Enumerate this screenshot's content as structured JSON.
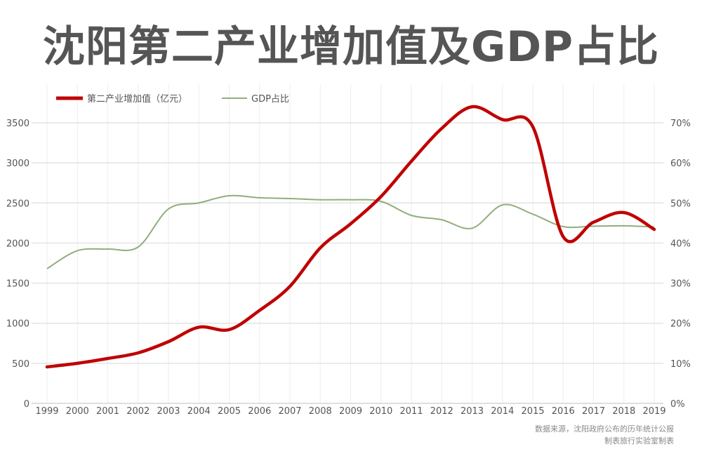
{
  "chart_data": {
    "type": "line",
    "title": "沈阳第二产业增加值及GDP占比",
    "x": [
      "1999",
      "2000",
      "2001",
      "2002",
      "2003",
      "2004",
      "2005",
      "2006",
      "2007",
      "2008",
      "2009",
      "2010",
      "2011",
      "2012",
      "2013",
      "2014",
      "2015",
      "2016",
      "2017",
      "2018",
      "2019"
    ],
    "series": [
      {
        "name": "第二产业增加值（亿元）",
        "axis": "left",
        "color": "#c00000",
        "values": [
          455,
          500,
          560,
          630,
          770,
          950,
          920,
          1160,
          1460,
          1940,
          2240,
          2580,
          3020,
          3430,
          3700,
          3540,
          3450,
          2080,
          2260,
          2380,
          2170
        ]
      },
      {
        "name": "GDP占比",
        "axis": "right",
        "color": "#8fae7e",
        "values": [
          33.6,
          38.1,
          38.5,
          39.0,
          48.5,
          50.0,
          51.8,
          51.3,
          51.1,
          50.8,
          50.8,
          50.4,
          46.9,
          45.8,
          43.7,
          49.5,
          47.2,
          44.1,
          44.2,
          44.3,
          44.0
        ]
      }
    ],
    "y_left": {
      "range": [
        0,
        3500
      ],
      "ticks": [
        "0",
        "500",
        "1000",
        "1500",
        "2000",
        "2500",
        "3000",
        "3500"
      ]
    },
    "y_right": {
      "range": [
        0,
        70
      ],
      "ticks": [
        "0%",
        "10%",
        "20%",
        "30%",
        "40%",
        "50%",
        "60%",
        "70%"
      ]
    },
    "grid": true,
    "legend": "top-left"
  },
  "source": {
    "line1": "数据来源，沈阳政府公布的历年统计公报",
    "line2": "制表旅行实验室制表"
  }
}
